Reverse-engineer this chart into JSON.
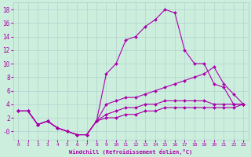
{
  "xlabel": "Windchill (Refroidissement éolien,°C)",
  "bg_color": "#cceedd",
  "grid_color": "#aacccc",
  "line_color": "#aa00aa",
  "xlim": [
    -0.5,
    23.5
  ],
  "ylim": [
    -1.2,
    19
  ],
  "xticks": [
    0,
    1,
    2,
    3,
    4,
    5,
    6,
    7,
    8,
    9,
    10,
    11,
    12,
    13,
    14,
    15,
    16,
    17,
    18,
    19,
    20,
    21,
    22,
    23
  ],
  "yticks": [
    0,
    2,
    4,
    6,
    8,
    10,
    12,
    14,
    16,
    18
  ],
  "ytick_labels": [
    "-0",
    "2",
    "4",
    "6",
    "8",
    "10",
    "12",
    "14",
    "16",
    "18"
  ],
  "line1_x": [
    0,
    1,
    2,
    3,
    4,
    5,
    6,
    7,
    8,
    9,
    10,
    11,
    12,
    13,
    14,
    15,
    16,
    17,
    18,
    19,
    20,
    21,
    22,
    23
  ],
  "line1_y": [
    3,
    3,
    1,
    1.5,
    0.5,
    0,
    -0.5,
    -0.5,
    1.5,
    8.5,
    10,
    13.5,
    14,
    15.5,
    16.5,
    18,
    17.5,
    12,
    10,
    10,
    7,
    6.5,
    4,
    4
  ],
  "line2_x": [
    0,
    1,
    2,
    3,
    4,
    5,
    6,
    7,
    8,
    9,
    10,
    11,
    12,
    13,
    14,
    15,
    16,
    17,
    18,
    19,
    20,
    21,
    22,
    23
  ],
  "line2_y": [
    3,
    3,
    1,
    1.5,
    0.5,
    0,
    -0.5,
    -0.5,
    1.5,
    4,
    4.5,
    5,
    5,
    5.5,
    6,
    6.5,
    7,
    7.5,
    8,
    8.5,
    9.5,
    7,
    5.5,
    4
  ],
  "line3_x": [
    0,
    1,
    2,
    3,
    4,
    5,
    6,
    7,
    8,
    9,
    10,
    11,
    12,
    13,
    14,
    15,
    16,
    17,
    18,
    19,
    20,
    21,
    22,
    23
  ],
  "line3_y": [
    3,
    3,
    1,
    1.5,
    0.5,
    0,
    -0.5,
    -0.5,
    1.5,
    2.5,
    3,
    3.5,
    3.5,
    4,
    4,
    4.5,
    4.5,
    4.5,
    4.5,
    4.5,
    4,
    4,
    4,
    4
  ],
  "line4_x": [
    0,
    1,
    2,
    3,
    4,
    5,
    6,
    7,
    8,
    9,
    10,
    11,
    12,
    13,
    14,
    15,
    16,
    17,
    18,
    19,
    20,
    21,
    22,
    23
  ],
  "line4_y": [
    3,
    3,
    1,
    1.5,
    0.5,
    0,
    -0.5,
    -0.5,
    1.5,
    2,
    2,
    2.5,
    2.5,
    3,
    3,
    3.5,
    3.5,
    3.5,
    3.5,
    3.5,
    3.5,
    3.5,
    3.5,
    4
  ]
}
